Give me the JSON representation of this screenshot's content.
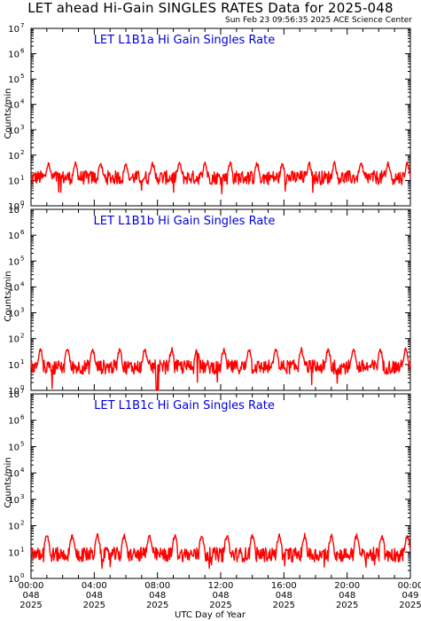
{
  "header": {
    "title": "LET ahead Hi-Gain SINGLES RATES Data for 2025-048",
    "timestamp": "Sun Feb 23 09:56:35 2025 ACE Science Center"
  },
  "colors": {
    "series": "#ff0000",
    "panel_title": "#0000dd",
    "axes": "#000000"
  },
  "chart_data": [
    {
      "type": "line",
      "title": "LET L1B1a Hi Gain Singles Rate",
      "ylabel": "Counts/min",
      "yscale": "log",
      "ylim": [
        1,
        10000000
      ],
      "y_ticks": [
        {
          "base": "10",
          "exp": "0"
        },
        {
          "base": "10",
          "exp": "1"
        },
        {
          "base": "10",
          "exp": "2"
        },
        {
          "base": "10",
          "exp": "3"
        },
        {
          "base": "10",
          "exp": "4"
        },
        {
          "base": "10",
          "exp": "5"
        },
        {
          "base": "10",
          "exp": "6"
        },
        {
          "base": "10",
          "exp": "7"
        }
      ],
      "xlim_hours": [
        0,
        24
      ],
      "baseline": 13,
      "peaks_hours": [
        1.1,
        2.8,
        4.4,
        6.0,
        7.7,
        9.4,
        11.0,
        12.6,
        14.3,
        15.9,
        17.6,
        19.2,
        20.9,
        22.6,
        23.8
      ],
      "peak_value": 50,
      "min_value": 3,
      "series": [
        {
          "values_summary": "noisy rate ~13 counts/min with periodic spikes to ~50"
        }
      ]
    },
    {
      "type": "line",
      "title": "LET L1B1b Hi Gain Singles Rate",
      "ylabel": "Counts/min",
      "yscale": "log",
      "ylim": [
        1,
        10000000
      ],
      "y_ticks": [
        {
          "base": "10",
          "exp": "0"
        },
        {
          "base": "10",
          "exp": "1"
        },
        {
          "base": "10",
          "exp": "2"
        },
        {
          "base": "10",
          "exp": "3"
        },
        {
          "base": "10",
          "exp": "4"
        },
        {
          "base": "10",
          "exp": "5"
        },
        {
          "base": "10",
          "exp": "6"
        },
        {
          "base": "10",
          "exp": "7"
        }
      ],
      "xlim_hours": [
        0,
        24
      ],
      "baseline": 8,
      "peaks_hours": [
        0.6,
        2.3,
        3.9,
        5.6,
        7.2,
        8.9,
        10.5,
        12.2,
        13.8,
        15.5,
        17.1,
        18.8,
        20.4,
        22.1,
        23.7
      ],
      "peak_value": 40,
      "min_value": 1,
      "series": [
        {
          "values_summary": "noisy rate ~8 counts/min with periodic spikes to ~40, dropouts near 08:00"
        }
      ]
    },
    {
      "type": "line",
      "title": "LET L1B1c Hi Gain Singles Rate",
      "ylabel": "Counts/min",
      "yscale": "log",
      "ylim": [
        1,
        10000000
      ],
      "y_ticks": [
        {
          "base": "10",
          "exp": "0"
        },
        {
          "base": "10",
          "exp": "1"
        },
        {
          "base": "10",
          "exp": "2"
        },
        {
          "base": "10",
          "exp": "3"
        },
        {
          "base": "10",
          "exp": "4"
        },
        {
          "base": "10",
          "exp": "5"
        },
        {
          "base": "10",
          "exp": "6"
        },
        {
          "base": "10",
          "exp": "7"
        }
      ],
      "xlim_hours": [
        0,
        24
      ],
      "baseline": 8,
      "peaks_hours": [
        1.0,
        2.6,
        4.2,
        5.9,
        7.5,
        9.1,
        10.8,
        12.4,
        14.0,
        15.7,
        17.3,
        19.0,
        20.6,
        22.2,
        23.8
      ],
      "peak_value": 45,
      "min_value": 2,
      "series": [
        {
          "values_summary": "noisy rate ~8 counts/min with periodic spikes to ~45"
        }
      ]
    }
  ],
  "x_axis": {
    "label": "UTC Day of Year",
    "ticks": [
      {
        "time": "00:00",
        "doy": "048",
        "year": "2025"
      },
      {
        "time": "04:00",
        "doy": "048",
        "year": "2025"
      },
      {
        "time": "08:00",
        "doy": "048",
        "year": "2025"
      },
      {
        "time": "12:00",
        "doy": "048",
        "year": "2025"
      },
      {
        "time": "16:00",
        "doy": "048",
        "year": "2025"
      },
      {
        "time": "20:00",
        "doy": "048",
        "year": "2025"
      },
      {
        "time": "00:00",
        "doy": "049",
        "year": "2025"
      }
    ]
  }
}
